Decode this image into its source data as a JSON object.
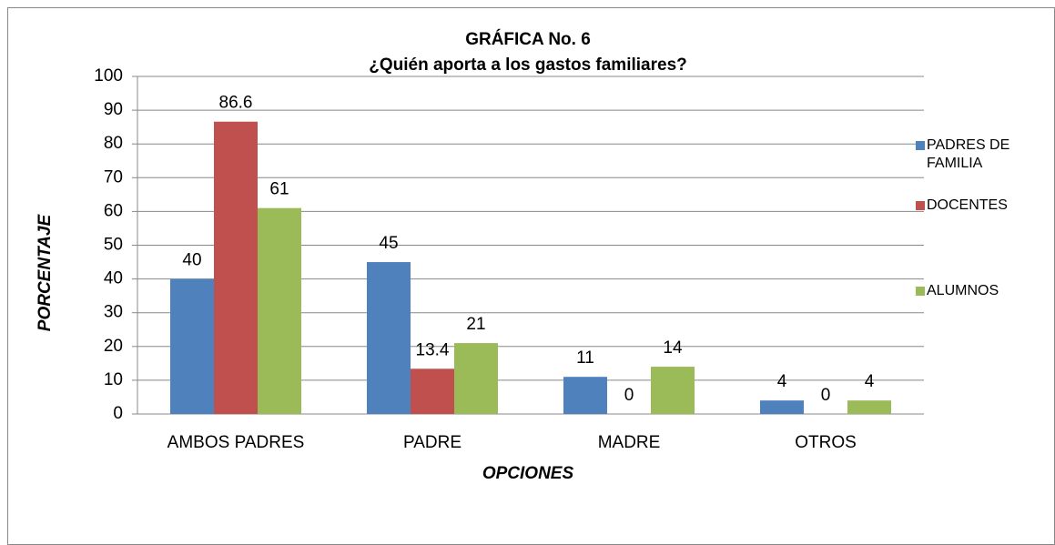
{
  "chart_data": {
    "type": "bar",
    "title": "GRÁFICA No. 6",
    "subtitle": "¿Quién aporta a los gastos familiares?",
    "y_label": "PORCENTAJE",
    "x_label": "OPCIONES",
    "categories": [
      "AMBOS PADRES",
      "PADRE",
      "MADRE",
      "OTROS"
    ],
    "series": [
      {
        "name": "PADRES DE FAMILIA",
        "color": "#4f81bd",
        "values": [
          40,
          45,
          11,
          4
        ]
      },
      {
        "name": "DOCENTES",
        "color": "#c0504d",
        "values": [
          86.6,
          13.4,
          0,
          0
        ]
      },
      {
        "name": "ALUMNOS",
        "color": "#9bbb59",
        "values": [
          61,
          21,
          14,
          4
        ]
      }
    ],
    "ylim": [
      0,
      100
    ],
    "yticks": [
      0,
      10,
      20,
      30,
      40,
      50,
      60,
      70,
      80,
      90,
      100
    ],
    "grid": true,
    "legend": "right"
  }
}
